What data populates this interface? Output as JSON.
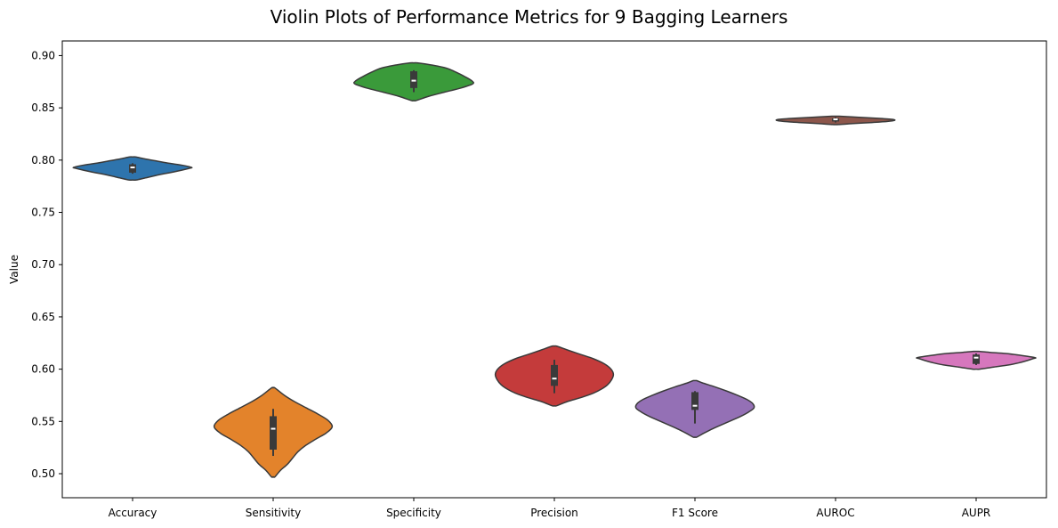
{
  "chart_data": {
    "type": "violin",
    "title": "Violin Plots of Performance Metrics for 9 Bagging Learners",
    "xlabel": "",
    "ylabel": "Value",
    "ylim": [
      0.477,
      0.914
    ],
    "yticks": [
      "0.50",
      "0.55",
      "0.60",
      "0.65",
      "0.70",
      "0.75",
      "0.80",
      "0.85",
      "0.90"
    ],
    "grid": false,
    "legend": "none",
    "categories": [
      "Accuracy",
      "Sensitivity",
      "Specificity",
      "Precision",
      "F1 Score",
      "AUROC",
      "AUPR"
    ],
    "series": [
      {
        "category": "Accuracy",
        "color": "#2e74ad",
        "min": 0.787,
        "q1": 0.788,
        "median": 0.793,
        "q3": 0.796,
        "max": 0.797,
        "violin_min": 0.781,
        "violin_max": 0.803,
        "max_halfwidth": 0.42,
        "profile": [
          [
            0.781,
            0.06
          ],
          [
            0.783,
            0.22
          ],
          [
            0.786,
            0.45
          ],
          [
            0.789,
            0.72
          ],
          [
            0.792,
            0.95
          ],
          [
            0.793,
            1.0
          ],
          [
            0.795,
            0.85
          ],
          [
            0.797,
            0.62
          ],
          [
            0.799,
            0.42
          ],
          [
            0.801,
            0.22
          ],
          [
            0.803,
            0.05
          ]
        ]
      },
      {
        "category": "Sensitivity",
        "color": "#e3832b",
        "min": 0.517,
        "q1": 0.523,
        "median": 0.543,
        "q3": 0.555,
        "max": 0.562,
        "violin_min": 0.497,
        "violin_max": 0.582,
        "max_halfwidth": 0.42,
        "profile": [
          [
            0.497,
            0.03
          ],
          [
            0.503,
            0.12
          ],
          [
            0.509,
            0.24
          ],
          [
            0.515,
            0.33
          ],
          [
            0.521,
            0.42
          ],
          [
            0.527,
            0.55
          ],
          [
            0.533,
            0.72
          ],
          [
            0.539,
            0.9
          ],
          [
            0.545,
            1.0
          ],
          [
            0.551,
            0.93
          ],
          [
            0.557,
            0.76
          ],
          [
            0.563,
            0.56
          ],
          [
            0.569,
            0.36
          ],
          [
            0.575,
            0.19
          ],
          [
            0.582,
            0.03
          ]
        ]
      },
      {
        "category": "Specificity",
        "color": "#3a9a3a",
        "min": 0.865,
        "q1": 0.869,
        "median": 0.876,
        "q3": 0.885,
        "max": 0.886,
        "violin_min": 0.857,
        "violin_max": 0.893,
        "max_halfwidth": 0.42,
        "profile": [
          [
            0.857,
            0.04
          ],
          [
            0.861,
            0.25
          ],
          [
            0.865,
            0.52
          ],
          [
            0.869,
            0.8
          ],
          [
            0.873,
            1.0
          ],
          [
            0.876,
            0.98
          ],
          [
            0.88,
            0.86
          ],
          [
            0.884,
            0.72
          ],
          [
            0.888,
            0.55
          ],
          [
            0.891,
            0.3
          ],
          [
            0.893,
            0.06
          ]
        ]
      },
      {
        "category": "Precision",
        "color": "#c43b3b",
        "min": 0.577,
        "q1": 0.584,
        "median": 0.591,
        "q3": 0.604,
        "max": 0.609,
        "violin_min": 0.565,
        "violin_max": 0.622,
        "max_halfwidth": 0.42,
        "profile": [
          [
            0.565,
            0.04
          ],
          [
            0.569,
            0.22
          ],
          [
            0.573,
            0.46
          ],
          [
            0.577,
            0.66
          ],
          [
            0.581,
            0.8
          ],
          [
            0.585,
            0.9
          ],
          [
            0.59,
            0.97
          ],
          [
            0.595,
            1.0
          ],
          [
            0.6,
            0.96
          ],
          [
            0.605,
            0.85
          ],
          [
            0.61,
            0.66
          ],
          [
            0.614,
            0.45
          ],
          [
            0.618,
            0.24
          ],
          [
            0.622,
            0.04
          ]
        ]
      },
      {
        "category": "F1 Score",
        "color": "#9470b5",
        "min": 0.548,
        "q1": 0.561,
        "median": 0.565,
        "q3": 0.578,
        "max": 0.579,
        "violin_min": 0.535,
        "violin_max": 0.589,
        "max_halfwidth": 0.42,
        "profile": [
          [
            0.535,
            0.03
          ],
          [
            0.539,
            0.16
          ],
          [
            0.543,
            0.3
          ],
          [
            0.547,
            0.46
          ],
          [
            0.551,
            0.62
          ],
          [
            0.555,
            0.78
          ],
          [
            0.559,
            0.91
          ],
          [
            0.563,
            1.0
          ],
          [
            0.567,
            0.98
          ],
          [
            0.571,
            0.88
          ],
          [
            0.575,
            0.72
          ],
          [
            0.579,
            0.54
          ],
          [
            0.583,
            0.34
          ],
          [
            0.587,
            0.12
          ],
          [
            0.589,
            0.03
          ]
        ]
      },
      {
        "category": "AUROC",
        "color": "#8c564b",
        "min": 0.836,
        "q1": 0.837,
        "median": 0.839,
        "q3": 0.84,
        "max": 0.841,
        "violin_min": 0.834,
        "violin_max": 0.842,
        "max_halfwidth": 0.42,
        "profile": [
          [
            0.834,
            0.05
          ],
          [
            0.835,
            0.3
          ],
          [
            0.836,
            0.62
          ],
          [
            0.837,
            0.88
          ],
          [
            0.838,
            1.0
          ],
          [
            0.839,
            0.96
          ],
          [
            0.84,
            0.72
          ],
          [
            0.841,
            0.4
          ],
          [
            0.842,
            0.06
          ]
        ]
      },
      {
        "category": "AUPR",
        "color": "#d677bd",
        "min": 0.604,
        "q1": 0.605,
        "median": 0.611,
        "q3": 0.614,
        "max": 0.615,
        "violin_min": 0.6,
        "violin_max": 0.617,
        "max_halfwidth": 0.42,
        "profile": [
          [
            0.6,
            0.06
          ],
          [
            0.602,
            0.3
          ],
          [
            0.604,
            0.55
          ],
          [
            0.606,
            0.72
          ],
          [
            0.608,
            0.85
          ],
          [
            0.61,
            0.96
          ],
          [
            0.611,
            1.0
          ],
          [
            0.613,
            0.78
          ],
          [
            0.615,
            0.5
          ],
          [
            0.616,
            0.25
          ],
          [
            0.617,
            0.05
          ]
        ]
      }
    ]
  }
}
